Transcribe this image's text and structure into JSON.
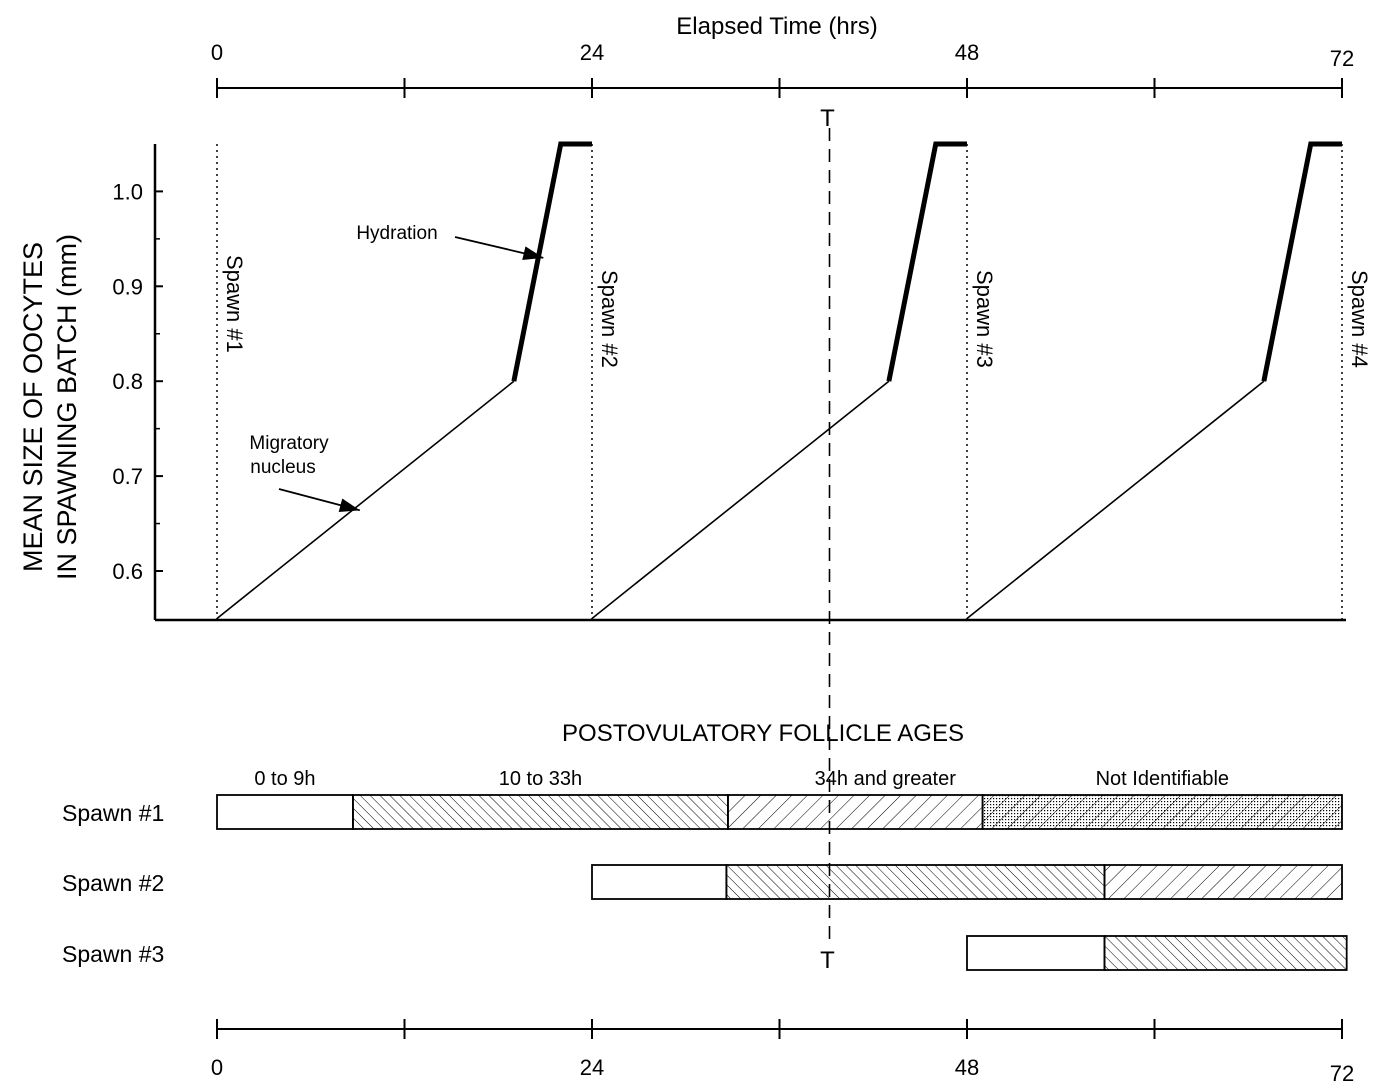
{
  "chart_data": {
    "type": "line",
    "title": "",
    "xlabel": "Elapsed Time (hrs)",
    "x_ticks": [
      "0",
      "24",
      "48",
      "72"
    ],
    "xlim": [
      0,
      72
    ],
    "ylabel_lines": [
      "MEAN SIZE OF OOCYTES",
      "IN SPAWNING BATCH (mm)"
    ],
    "ylim": [
      0.55,
      1.05
    ],
    "y_ticks": [
      "0.6",
      "0.7",
      "0.8",
      "0.9",
      "1.0"
    ],
    "grid": false,
    "series": [
      {
        "x": [
          0,
          19,
          22,
          24
        ],
        "y": [
          0.55,
          0.8,
          1.05,
          1.05
        ]
      },
      {
        "x": [
          24,
          43,
          46,
          48
        ],
        "y": [
          0.55,
          0.8,
          1.05,
          1.05
        ]
      },
      {
        "x": [
          48,
          67,
          70,
          72
        ],
        "y": [
          0.55,
          0.8,
          1.05,
          1.05
        ]
      }
    ],
    "spawn_times": [
      0,
      24,
      48,
      72
    ],
    "spawn_labels": [
      "Spawn #1",
      "Spawn #2",
      "Spawn #3",
      "Spawn #4"
    ],
    "annotations": [
      {
        "text": "Hydration",
        "target": {
          "x": 20.5,
          "y": 0.93
        }
      },
      {
        "text": "Migratory nucleus",
        "lines": [
          "Migratory",
          "nucleus"
        ],
        "target": {
          "x": 8.5,
          "y": 0.665
        }
      }
    ],
    "marker": {
      "label": "T",
      "x": 39.2
    },
    "follicle_section": {
      "title": "POSTOVULATORY FOLLICLE AGES",
      "stage_labels": [
        "0 to 9h",
        "10 to 33h",
        "34h and greater",
        "Not Identifiable"
      ],
      "stage_fills": [
        "none",
        "back-hatch",
        "forward-hatch",
        "forward-hatch-stipple"
      ],
      "rows": [
        {
          "label": "Spawn #1",
          "segments": [
            {
              "stage": 0,
              "start": 0,
              "end": 8.7
            },
            {
              "stage": 1,
              "start": 8.7,
              "end": 32.7
            },
            {
              "stage": 2,
              "start": 32.7,
              "end": 49
            },
            {
              "stage": 3,
              "start": 49,
              "end": 72
            }
          ]
        },
        {
          "label": "Spawn #2",
          "segments": [
            {
              "stage": 0,
              "start": 24,
              "end": 32.6
            },
            {
              "stage": 1,
              "start": 32.6,
              "end": 56.8
            },
            {
              "stage": 2,
              "start": 56.8,
              "end": 72
            }
          ]
        },
        {
          "label": "Spawn #3",
          "segments": [
            {
              "stage": 0,
              "start": 48,
              "end": 56.8
            },
            {
              "stage": 1,
              "start": 56.8,
              "end": 72.3
            }
          ]
        }
      ]
    }
  }
}
